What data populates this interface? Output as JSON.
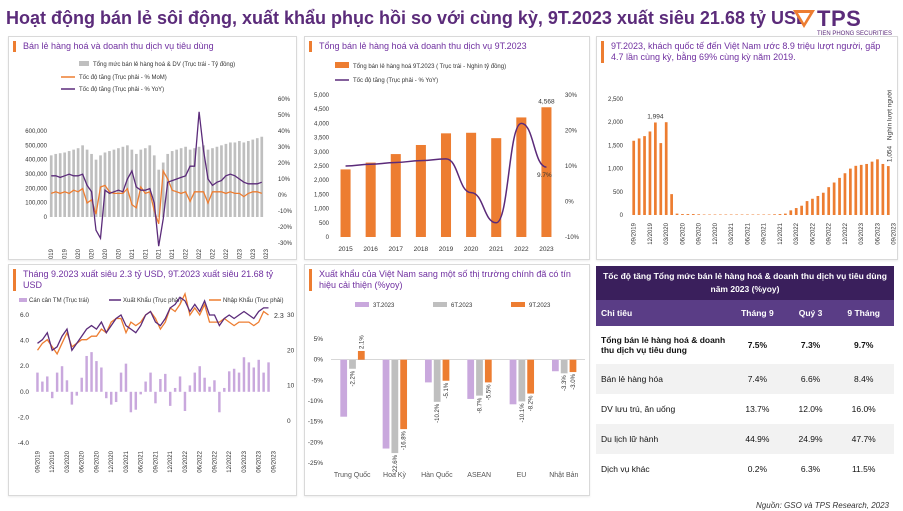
{
  "header": {
    "title": "Hoạt động bán lẻ sôi động, xuất khẩu phục hồi so với cùng kỳ, 9T.2023 xuất siêu 21.68 tỷ USD",
    "logo": "TPS",
    "logo_sub": "TIEN PHONG SECURITIES"
  },
  "colors": {
    "purple": "#5b2b7a",
    "orange": "#ed7d31",
    "grey": "#bfbfbf",
    "lavender": "#c9a8dd",
    "light_orange": "#f4b183"
  },
  "source": "Nguồn: GSO và TPS Research, 2023",
  "chart_data": [
    {
      "id": "retail_monthly",
      "type": "bar",
      "title": "Bán lẻ hàng hoá và doanh thu dịch vụ tiêu dùng",
      "legend": [
        "Tổng mức bán lẻ hàng hoá & DV (Trục trái - Tỷ đồng)",
        "Tốc độ tăng (Trục phải - % MoM)",
        "Tốc độ tăng (Trục phải - % YoY)"
      ],
      "x_ticks": [
        "09/2019",
        "12/2019",
        "03/2020",
        "06/2020",
        "09/2020",
        "12/2020",
        "03/2021",
        "06/2021",
        "09/2021",
        "12/2021",
        "03/2022",
        "06/2022",
        "09/2022",
        "12/2022",
        "03/2023",
        "06/2023",
        "09/2023"
      ],
      "yleft_ticks": [
        "0",
        "100,000",
        "200,000",
        "300,000",
        "400,000",
        "500,000",
        "600,000"
      ],
      "yright_ticks": [
        "-30%",
        "-20%",
        "-10%",
        "0%",
        "10%",
        "20%",
        "30%",
        "40%",
        "50%",
        "60%"
      ],
      "ylim_left": [
        0,
        600000
      ],
      "ylim_right": [
        -30,
        60
      ],
      "values": [
        430,
        440,
        445,
        450,
        460,
        470,
        480,
        500,
        470,
        440,
        400,
        430,
        450,
        460,
        470,
        480,
        490,
        500,
        470,
        440,
        470,
        480,
        500,
        430,
        330,
        380,
        440,
        460,
        470,
        480,
        490,
        470,
        480,
        490,
        500,
        470,
        480,
        490,
        500,
        510,
        520,
        520,
        530,
        520,
        530,
        540,
        550,
        560
      ],
      "mom": [
        1,
        2,
        1,
        2,
        1,
        3,
        2,
        4,
        -5,
        -3,
        -12,
        5,
        6,
        2,
        1,
        1,
        1,
        4,
        -6,
        -8,
        5,
        1,
        2,
        -10,
        -18,
        15,
        10,
        3,
        2,
        1,
        2,
        -4,
        2,
        2,
        2,
        -5,
        2,
        2,
        2,
        1,
        2,
        1,
        1,
        -1,
        1,
        2,
        2,
        1
      ],
      "yoy": [
        12,
        12,
        11,
        12,
        13,
        12,
        12,
        13,
        6,
        2,
        -22,
        -27,
        3,
        1,
        2,
        3,
        2,
        10,
        15,
        5,
        3,
        3,
        4,
        -5,
        -32,
        -15,
        8,
        9,
        10,
        11,
        12,
        18,
        18,
        52,
        28,
        10,
        6,
        8,
        9,
        12,
        13,
        12,
        10,
        8,
        7,
        7,
        7,
        8
      ]
    },
    {
      "id": "retail_annual",
      "type": "bar",
      "title": "Tổng bán lẻ hàng hoá và doanh thu dịch vụ 9T.2023",
      "legend": [
        "Tổng bán lẻ hàng hoá 9T.2023 ( Trục trái - Nghìn tỷ đồng)",
        "Tốc độ tăng (Trục phải - % YoY)"
      ],
      "categories": [
        "2015",
        "2016",
        "2017",
        "2018",
        "2019",
        "2020",
        "2021",
        "2022",
        "2023"
      ],
      "values": [
        2380,
        2620,
        2920,
        3240,
        3650,
        3670,
        3480,
        4210,
        4568
      ],
      "growth": [
        10,
        10.5,
        11,
        11.5,
        12,
        2.5,
        -6,
        22,
        9.7
      ],
      "label_last_value": "4,568",
      "label_last_growth": "9.7%",
      "yleft_ticks": [
        "0",
        "500",
        "1,000",
        "1,500",
        "2,000",
        "2,500",
        "3,000",
        "3,500",
        "4,000",
        "4,500",
        "5,000"
      ],
      "yright_ticks": [
        "-10%",
        "0%",
        "10%",
        "20%",
        "30%"
      ],
      "ylim_left": [
        0,
        5000
      ],
      "ylim_right": [
        -10,
        30
      ]
    },
    {
      "id": "tourists",
      "type": "bar",
      "title": "9T.2023, khách quốc tế đến Việt Nam ước 8.9 triệu lượt người, gấp 4.7 lần cùng kỳ, bằng 69% cùng kỳ năm 2019.",
      "x_ticks": [
        "09/2019",
        "12/2019",
        "03/2020",
        "06/2020",
        "09/2020",
        "12/2020",
        "03/2021",
        "06/2021",
        "09/2021",
        "12/2021",
        "03/2022",
        "06/2022",
        "09/2022",
        "12/2022",
        "03/2023",
        "06/2023",
        "09/2023"
      ],
      "yticks": [
        "0",
        "500",
        "1,000",
        "1,500",
        "2,000",
        "2,500"
      ],
      "ylim": [
        0,
        2500
      ],
      "values": [
        1600,
        1650,
        1700,
        1800,
        1994,
        1550,
        2000,
        450,
        30,
        20,
        20,
        20,
        15,
        10,
        10,
        10,
        10,
        10,
        10,
        10,
        10,
        10,
        10,
        10,
        10,
        10,
        15,
        20,
        30,
        100,
        150,
        200,
        300,
        350,
        410,
        480,
        600,
        700,
        800,
        900,
        1000,
        1060,
        1080,
        1100,
        1150,
        1200,
        1100,
        1054
      ],
      "label_peak": "1,994",
      "label_last": "1,054",
      "label_last_note": "Nghìn lượt người"
    },
    {
      "id": "trade_balance",
      "type": "bar",
      "title": "Tháng 9.2023 xuất siêu 2.3 tỷ USD, 9T.2023 xuất siêu 21.68 tỷ USD",
      "legend": [
        "Cán cân TM (Trục trái)",
        "Xuất Khẩu (Trục phải)",
        "Nhập Khẩu (Trục phải)"
      ],
      "x_ticks": [
        "09/2019",
        "12/2019",
        "03/2020",
        "06/2020",
        "09/2020",
        "12/2020",
        "03/2021",
        "06/2021",
        "09/2021",
        "12/2021",
        "03/2022",
        "06/2022",
        "09/2022",
        "12/2022",
        "03/2023",
        "06/2023",
        "09/2023"
      ],
      "yleft_ticks": [
        "-4.0",
        "-2.0",
        "0.0",
        "2.0",
        "4.0",
        "6.0"
      ],
      "yright_ticks": [
        "0",
        "10",
        "20",
        "30"
      ],
      "ylim_left": [
        -4,
        6
      ],
      "ylim_right": [
        0,
        30
      ],
      "balance": [
        1.5,
        0.8,
        1.2,
        -0.5,
        1.5,
        2.0,
        0.9,
        -1.0,
        -0.3,
        1.1,
        2.8,
        3.1,
        2.4,
        1.9,
        -0.5,
        -1.0,
        -0.8,
        1.5,
        2.2,
        -1.6,
        -1.4,
        -0.2,
        0.8,
        1.5,
        -0.9,
        1.0,
        1.4,
        -1.1,
        0.3,
        1.2,
        -1.5,
        0.5,
        1.5,
        2.0,
        1.1,
        0.4,
        0.9,
        -1.6,
        0.3,
        1.6,
        1.8,
        1.5,
        2.7,
        2.3,
        1.9,
        2.5,
        1.5,
        2.3
      ],
      "exports": [
        22,
        23,
        25,
        20,
        21,
        24,
        26,
        20,
        22,
        24,
        26,
        27,
        26,
        28,
        25,
        27,
        29,
        30,
        27,
        26,
        25,
        27,
        30,
        31,
        28,
        27,
        29,
        32,
        33,
        35,
        34,
        31,
        33,
        31,
        34,
        30,
        30,
        27,
        29,
        30,
        29,
        30,
        31,
        30,
        29,
        31,
        32,
        32
      ],
      "imports": [
        20,
        22,
        23,
        21,
        19,
        22,
        25,
        21,
        22,
        23,
        23,
        24,
        24,
        26,
        25,
        28,
        29,
        29,
        25,
        28,
        27,
        28,
        30,
        31,
        29,
        26,
        28,
        32,
        31,
        33,
        36,
        30,
        32,
        30,
        33,
        28,
        28,
        28,
        29,
        28,
        27,
        28,
        28,
        28,
        27,
        28,
        31,
        30
      ],
      "label_last": "2.3"
    },
    {
      "id": "exports_markets",
      "type": "bar",
      "title": "Xuất khẩu của Việt Nam sang một số thị trường chính đã có tín hiệu cải thiện (%yoy)",
      "legend": [
        "3T.2023",
        "6T.2023",
        "9T.2023"
      ],
      "categories": [
        "Trung Quốc",
        "Hoa Kỳ",
        "Hàn Quốc",
        "ASEAN",
        "EU",
        "Nhật Bản"
      ],
      "series": [
        {
          "name": "3T.2023",
          "values": [
            -13.8,
            -21.5,
            -5.5,
            -9.5,
            -10.8,
            -2.8
          ]
        },
        {
          "name": "6T.2023",
          "values": [
            -2.2,
            -22.6,
            -10.2,
            -8.7,
            -10.1,
            -3.3
          ]
        },
        {
          "name": "9T.2023",
          "values": [
            2.1,
            -16.8,
            -5.1,
            -5.5,
            -8.2,
            -3.0
          ]
        }
      ],
      "labels": [
        [
          "",
          "-2.2%",
          "2.1%"
        ],
        [
          "",
          "-22.6%",
          "-16.8%"
        ],
        [
          "",
          "-10.2%",
          "-5.1%"
        ],
        [
          "",
          "-8.7%",
          "-5.5%"
        ],
        [
          "",
          "-10.1%",
          "-8.2%"
        ],
        [
          "",
          "-3.3%",
          "-3.0%"
        ]
      ],
      "yticks": [
        "-25%",
        "-20%",
        "-15%",
        "-10%",
        "-5%",
        "0%",
        "5%"
      ],
      "ylim": [
        -25,
        5
      ]
    },
    {
      "id": "growth_table",
      "type": "table",
      "title": "Tốc độ tăng Tổng mức bán lẻ hàng hoá & doanh thu dịch vụ tiêu dùng năm 2023 (%yoy)",
      "columns": [
        "Chỉ tiêu",
        "Tháng 9",
        "Quý 3",
        "9 Tháng"
      ],
      "rows": [
        [
          "Tổng bán lẻ hàng hoá & doanh thu dịch vụ tiêu dung",
          "7.5%",
          "7.3%",
          "9.7%"
        ],
        [
          "Bán lẻ hàng hóa",
          "7.4%",
          "6.6%",
          "8.4%"
        ],
        [
          "DV lưu trú, ăn uống",
          "13.7%",
          "12.0%",
          "16.0%"
        ],
        [
          "Du lịch lữ hành",
          "44.9%",
          "24.9%",
          "47.7%"
        ],
        [
          "Dịch vụ khác",
          "0.2%",
          "6.3%",
          "11.5%"
        ]
      ]
    }
  ]
}
